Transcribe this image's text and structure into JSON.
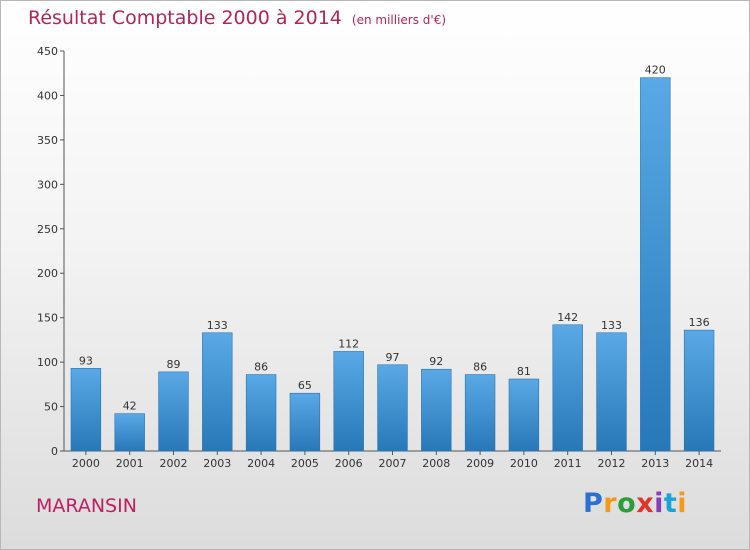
{
  "header": {
    "title": "Résultat Comptable 2000 à 2014",
    "subtitle": "(en milliers d'€)"
  },
  "footer": {
    "commune": "MARANSIN",
    "logo_text": "Proxiti"
  },
  "colors": {
    "bar_top": "#5aa9e6",
    "bar_bottom": "#2878b8",
    "title": "#b3245b"
  },
  "chart_data": {
    "type": "bar",
    "title": "Résultat Comptable 2000 à 2014",
    "subtitle": "(en milliers d'€)",
    "categories": [
      "2000",
      "2001",
      "2002",
      "2003",
      "2004",
      "2005",
      "2006",
      "2007",
      "2008",
      "2009",
      "2010",
      "2011",
      "2012",
      "2013",
      "2014"
    ],
    "values": [
      93,
      42,
      89,
      133,
      86,
      65,
      112,
      97,
      92,
      86,
      81,
      142,
      133,
      420,
      136
    ],
    "ylim": [
      0,
      450
    ],
    "yticks": [
      0,
      50,
      100,
      150,
      200,
      250,
      300,
      350,
      400,
      450
    ],
    "grid": false,
    "legend": "none"
  }
}
